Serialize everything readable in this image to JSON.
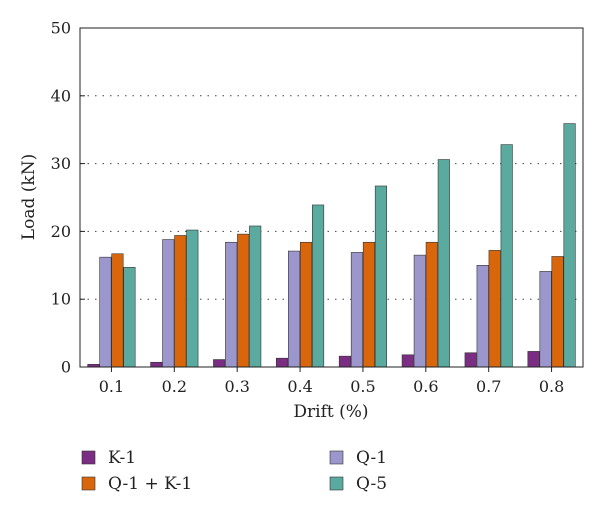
{
  "chart_data": {
    "type": "bar",
    "xlabel": "Drift (%)",
    "ylabel": "Load (kN)",
    "ylim": [
      0,
      50
    ],
    "yticks": [
      "0",
      "10",
      "20",
      "30",
      "40",
      "50"
    ],
    "grid": "horizontal dotted",
    "legend_position": "bottom",
    "categories": [
      "0.1",
      "0.2",
      "0.3",
      "0.4",
      "0.5",
      "0.6",
      "0.7",
      "0.8"
    ],
    "series": [
      {
        "name": "K-1",
        "color": "#7b2c83",
        "values": [
          0.4,
          0.7,
          1.1,
          1.3,
          1.6,
          1.8,
          2.1,
          2.3
        ]
      },
      {
        "name": "Q-1",
        "color": "#9b96cc",
        "values": [
          16.2,
          18.8,
          18.4,
          17.1,
          16.9,
          16.5,
          15.0,
          14.1
        ]
      },
      {
        "name": "Q-1 + K-1",
        "color": "#d9660b",
        "values": [
          16.7,
          19.4,
          19.6,
          18.4,
          18.4,
          18.4,
          17.2,
          16.3
        ]
      },
      {
        "name": "Q-5",
        "color": "#5aaaa0",
        "values": [
          14.7,
          20.2,
          20.8,
          23.9,
          26.7,
          30.6,
          32.8,
          35.9
        ]
      }
    ]
  }
}
